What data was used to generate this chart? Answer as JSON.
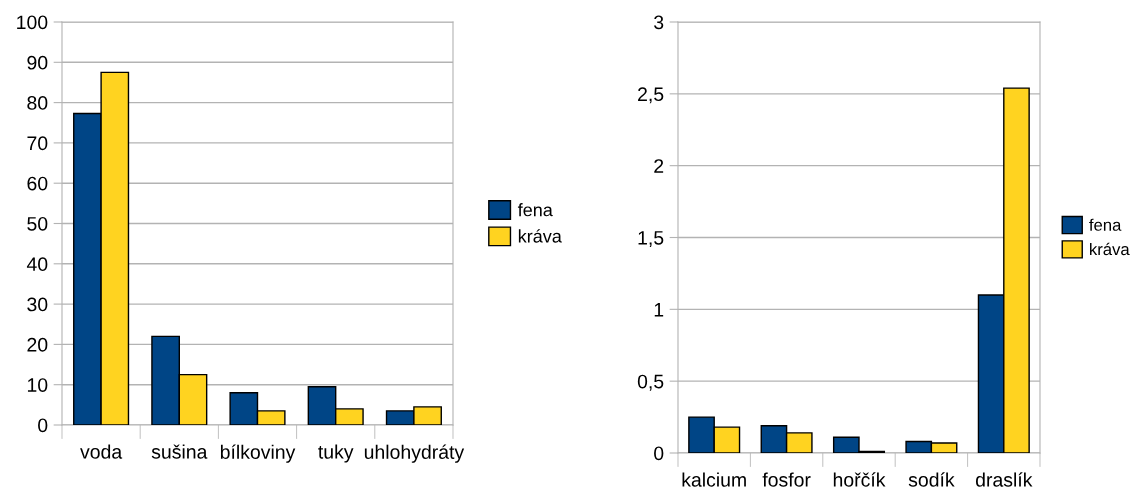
{
  "chart_data": [
    {
      "type": "bar",
      "categories": [
        "voda",
        "sušina",
        "bílkoviny",
        "tuky",
        "uhlohydráty"
      ],
      "series": [
        {
          "name": "fena",
          "color": "#004586",
          "values": [
            77.3,
            22,
            8,
            9.5,
            3.5
          ]
        },
        {
          "name": "kráva",
          "color": "#ffd320",
          "values": [
            87.5,
            12.5,
            3.5,
            4,
            4.5
          ]
        }
      ],
      "ylim": [
        0,
        100
      ],
      "yticks": [
        0,
        10,
        20,
        30,
        40,
        50,
        60,
        70,
        80,
        90,
        100
      ],
      "grid": "y",
      "legend": "right"
    },
    {
      "type": "bar",
      "categories": [
        "kalcium",
        "fosfor",
        "hořčík",
        "sodík",
        "draslík"
      ],
      "series": [
        {
          "name": "fena",
          "color": "#004586",
          "values": [
            0.25,
            0.19,
            0.11,
            0.08,
            1.1
          ]
        },
        {
          "name": "kráva",
          "color": "#ffd320",
          "values": [
            0.18,
            0.14,
            0.01,
            0.07,
            2.54
          ]
        }
      ],
      "ylim": [
        0,
        3
      ],
      "yticks": [
        0,
        {
          "value": 0.5,
          "label": "0,5"
        },
        1,
        {
          "value": 1.5,
          "label": "1,5"
        },
        2,
        {
          "value": 2.5,
          "label": "2,5"
        },
        3
      ],
      "grid": "y",
      "legend": "right"
    }
  ]
}
